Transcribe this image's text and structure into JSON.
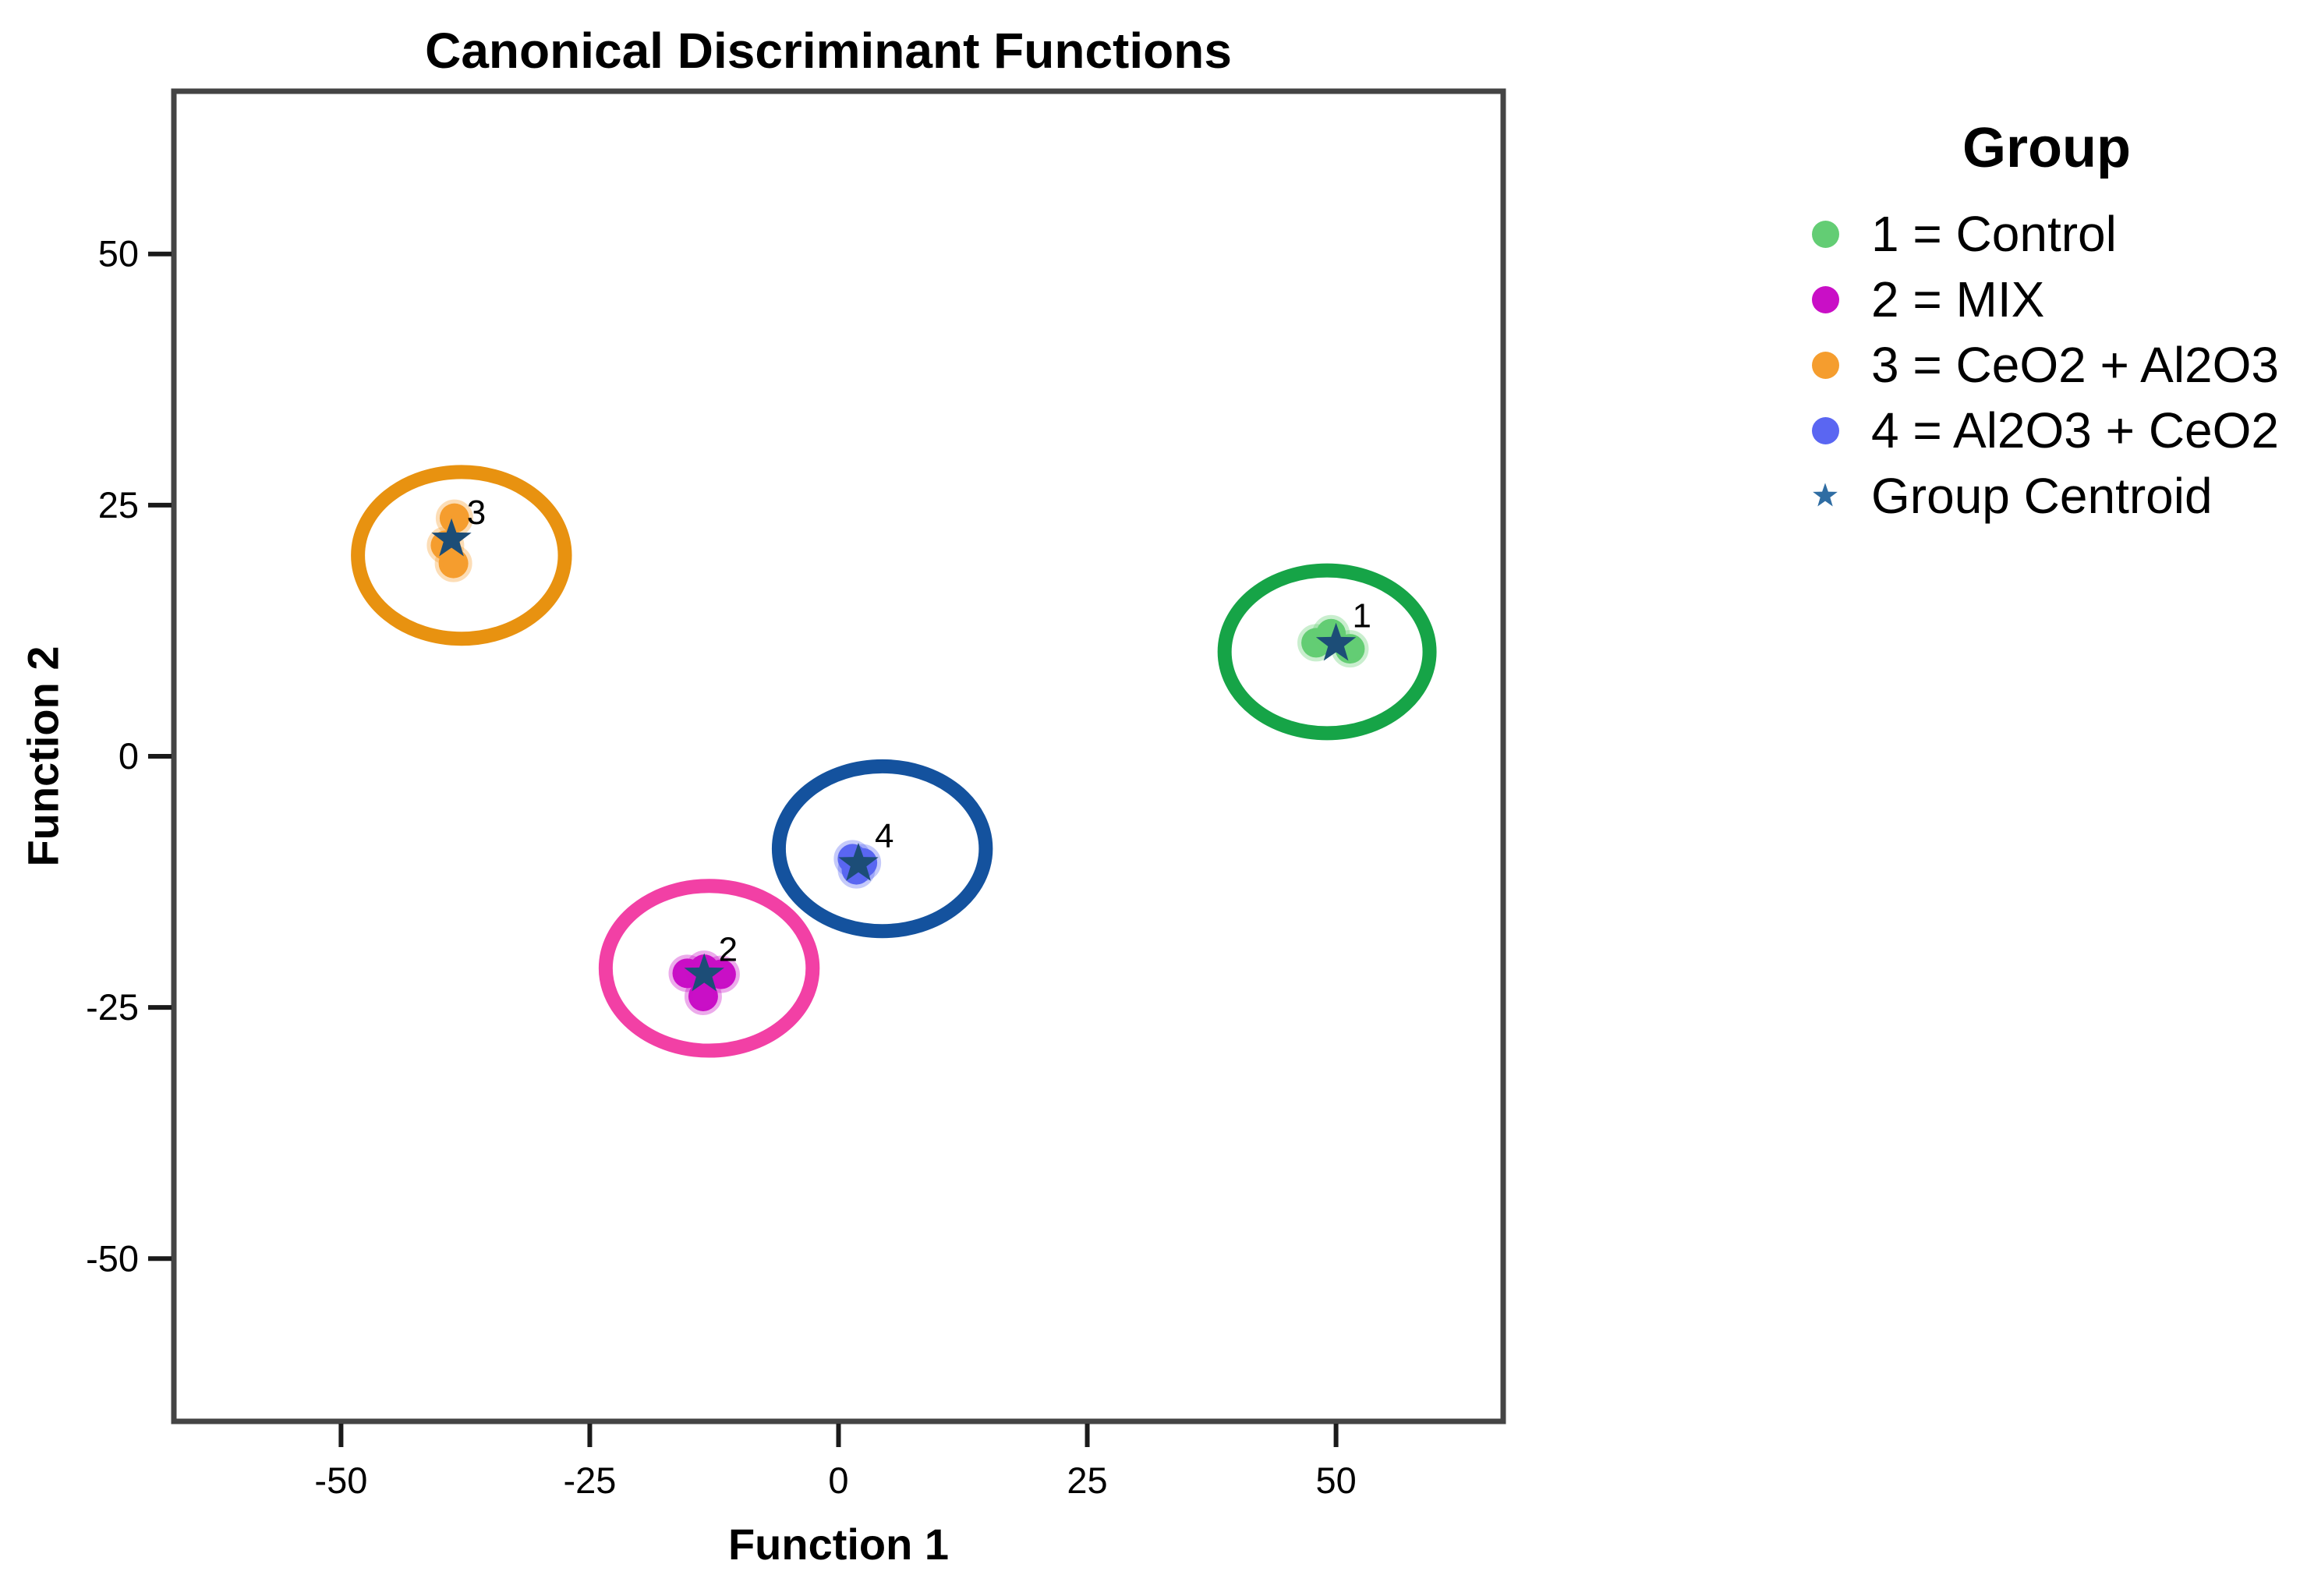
{
  "chart_data": {
    "type": "scatter",
    "title": "Canonical Discriminant Functions",
    "xlabel": "Function 1",
    "ylabel": "Function 2",
    "xlim": [
      -66.8,
      66.8
    ],
    "ylim": [
      -66.2,
      66.2
    ],
    "xticks": [
      -50,
      -25,
      0,
      25,
      50
    ],
    "yticks": [
      50,
      25,
      0,
      -25,
      -50
    ],
    "grid": false,
    "centroid_color": "#1C4D77",
    "centroid_marker": "star",
    "groups": [
      {
        "id": "1",
        "name": "Control",
        "dot_color": "#63CD74",
        "ring_color": "#16A447",
        "points": [
          [
            48.0,
            11.3
          ],
          [
            49.5,
            12.2
          ],
          [
            51.4,
            10.7
          ]
        ],
        "centroid": [
          50.0,
          11.2
        ],
        "label": "1",
        "label_pos": [
          52.6,
          14.0
        ],
        "ellipse": {
          "cx": 49.1,
          "cy": 10.4,
          "rx": 10.3,
          "ry": 8.1
        }
      },
      {
        "id": "2",
        "name": "MIX",
        "dot_color": "#C90FC6",
        "ring_color": "#F240A5",
        "points": [
          [
            -15.2,
            -21.6
          ],
          [
            -13.5,
            -21.2
          ],
          [
            -11.8,
            -21.7
          ],
          [
            -13.6,
            -23.9
          ]
        ],
        "centroid": [
          -13.5,
          -21.7
        ],
        "label": "2",
        "label_pos": [
          -11.1,
          -19.2
        ],
        "ellipse": {
          "cx": -13.0,
          "cy": -21.1,
          "rx": 10.4,
          "ry": 8.2
        }
      },
      {
        "id": "3",
        "name": "CeO2 + Al2O3",
        "dot_color": "#F59D2E",
        "ring_color": "#E89210",
        "points": [
          [
            -38.6,
            23.7
          ],
          [
            -39.5,
            21.0
          ],
          [
            -38.7,
            19.2
          ]
        ],
        "centroid": [
          -38.9,
          21.6
        ],
        "label": "3",
        "label_pos": [
          -36.4,
          24.3
        ],
        "ellipse": {
          "cx": -37.9,
          "cy": 20.0,
          "rx": 10.4,
          "ry": 8.3
        }
      },
      {
        "id": "4",
        "name": "Al2O3 + CeO2",
        "dot_color": "#5A66F2",
        "ring_color": "#14529E",
        "points": [
          [
            1.4,
            -10.2
          ],
          [
            2.4,
            -10.6
          ],
          [
            1.8,
            -11.3
          ]
        ],
        "centroid": [
          2.0,
          -10.7
        ],
        "label": "4",
        "label_pos": [
          4.6,
          -7.9
        ],
        "ellipse": {
          "cx": 4.4,
          "cy": -9.2,
          "rx": 10.4,
          "ry": 8.2
        }
      }
    ]
  },
  "legend": {
    "title": "Group",
    "entries": [
      {
        "marker": "dot",
        "color": "#63CD74",
        "label": "1 = Control"
      },
      {
        "marker": "dot",
        "color": "#C90FC6",
        "label": "2 = MIX"
      },
      {
        "marker": "dot",
        "color": "#F59D2E",
        "label": "3 = CeO2 + Al2O3"
      },
      {
        "marker": "dot",
        "color": "#5A66F2",
        "label": "4 = Al2O3 + CeO2"
      },
      {
        "marker": "star",
        "color": "#2F6DA3",
        "label": "Group Centroid"
      }
    ]
  }
}
